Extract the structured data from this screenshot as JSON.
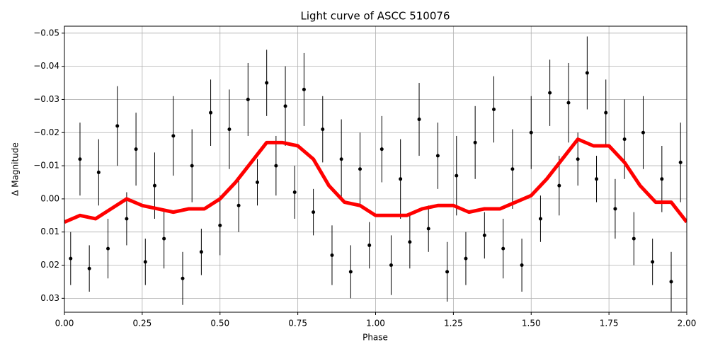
{
  "chart_data": {
    "type": "scatter",
    "title": "Light curve of ASCC 510076",
    "x_label": "Phase",
    "y_label": "Δ Magnitude",
    "grid": true,
    "color": "#000000",
    "xlim": [
      0,
      2
    ],
    "ylim": [
      0.0342,
      -0.0521
    ],
    "xticks": [
      {
        "value": 0,
        "label": "0.00"
      },
      {
        "value": 0.25,
        "label": "0.25"
      },
      {
        "value": 0.5,
        "label": "0.50"
      },
      {
        "value": 0.75,
        "label": "0.75"
      },
      {
        "value": 1,
        "label": "1.00"
      },
      {
        "value": 1.25,
        "label": "1.25"
      },
      {
        "value": 1.5,
        "label": "1.50"
      },
      {
        "value": 1.75,
        "label": "1.75"
      },
      {
        "value": 2,
        "label": "2.00"
      }
    ],
    "yticks": [
      {
        "value": -0.05,
        "label": "−0.05"
      },
      {
        "value": -0.04,
        "label": "−0.04"
      },
      {
        "value": -0.03,
        "label": "−0.03"
      },
      {
        "value": -0.02,
        "label": "−0.02"
      },
      {
        "value": -0.01,
        "label": "−0.01"
      },
      {
        "value": 0,
        "label": "0.00"
      },
      {
        "value": 0.01,
        "label": "0.01"
      },
      {
        "value": 0.02,
        "label": "0.02"
      },
      {
        "value": 0.03,
        "label": "0.03"
      }
    ],
    "x": [
      0.02,
      0.05,
      0.08,
      0.11,
      0.14,
      0.17,
      0.2,
      0.23,
      0.26,
      0.29,
      0.32,
      0.35,
      0.38,
      0.41,
      0.44,
      0.47,
      0.5,
      0.53,
      0.56,
      0.59,
      0.62,
      0.65,
      0.68,
      0.71,
      0.74,
      0.77,
      0.8,
      0.83,
      0.86,
      0.89,
      0.92,
      0.95,
      0.98,
      1.02,
      1.05,
      1.08,
      1.11,
      1.14,
      1.17,
      1.2,
      1.23,
      1.26,
      1.29,
      1.32,
      1.35,
      1.38,
      1.41,
      1.44,
      1.47,
      1.5,
      1.53,
      1.56,
      1.59,
      1.62,
      1.65,
      1.68,
      1.71,
      1.74,
      1.77,
      1.8,
      1.83,
      1.86,
      1.89,
      1.92,
      1.95,
      1.98
    ],
    "values": [
      0.018,
      -0.012,
      0.021,
      -0.008,
      0.015,
      -0.022,
      0.006,
      -0.015,
      0.019,
      -0.004,
      0.012,
      -0.019,
      0.024,
      -0.01,
      0.016,
      -0.026,
      0.008,
      -0.021,
      0.002,
      -0.03,
      -0.005,
      -0.035,
      -0.01,
      -0.028,
      -0.002,
      -0.033,
      0.004,
      -0.021,
      0.017,
      -0.012,
      0.022,
      -0.009,
      0.014,
      -0.015,
      0.02,
      -0.006,
      0.013,
      -0.024,
      0.009,
      -0.013,
      0.022,
      -0.007,
      0.018,
      -0.017,
      0.011,
      -0.027,
      0.015,
      -0.009,
      0.02,
      -0.02,
      0.006,
      -0.032,
      -0.004,
      -0.029,
      -0.012,
      -0.038,
      -0.006,
      -0.026,
      0.003,
      -0.018,
      0.012,
      -0.02,
      0.019,
      -0.006,
      0.025,
      -0.011
    ],
    "errors": [
      0.008,
      0.011,
      0.007,
      0.01,
      0.009,
      0.012,
      0.008,
      0.011,
      0.007,
      0.01,
      0.009,
      0.012,
      0.008,
      0.011,
      0.007,
      0.01,
      0.009,
      0.012,
      0.008,
      0.011,
      0.007,
      0.01,
      0.009,
      0.012,
      0.008,
      0.011,
      0.007,
      0.01,
      0.009,
      0.012,
      0.008,
      0.011,
      0.007,
      0.01,
      0.009,
      0.012,
      0.008,
      0.011,
      0.007,
      0.01,
      0.009,
      0.012,
      0.008,
      0.011,
      0.007,
      0.01,
      0.009,
      0.012,
      0.008,
      0.011,
      0.007,
      0.01,
      0.009,
      0.012,
      0.008,
      0.011,
      0.007,
      0.01,
      0.009,
      0.012,
      0.008,
      0.011,
      0.007,
      0.01,
      0.009,
      0.012
    ],
    "curve": {
      "color": "#ff0000",
      "x": [
        0,
        0.05,
        0.1,
        0.15,
        0.2,
        0.25,
        0.3,
        0.35,
        0.4,
        0.45,
        0.5,
        0.55,
        0.6,
        0.65,
        0.7,
        0.75,
        0.8,
        0.85,
        0.9,
        0.95,
        1,
        1.05,
        1.1,
        1.15,
        1.2,
        1.25,
        1.3,
        1.35,
        1.4,
        1.45,
        1.5,
        1.55,
        1.6,
        1.65,
        1.7,
        1.75,
        1.8,
        1.85,
        1.9,
        1.95,
        2
      ],
      "values": [
        0.007,
        0.005,
        0.006,
        0.003,
        0.0,
        0.002,
        0.003,
        0.004,
        0.003,
        0.003,
        0.0,
        -0.005,
        -0.011,
        -0.017,
        -0.017,
        -0.016,
        -0.012,
        -0.004,
        0.001,
        0.002,
        0.005,
        0.005,
        0.005,
        0.003,
        0.002,
        0.002,
        0.004,
        0.003,
        0.003,
        0.001,
        -0.001,
        -0.006,
        -0.012,
        -0.018,
        -0.016,
        -0.016,
        -0.011,
        -0.004,
        0.001,
        0.001,
        0.007
      ]
    }
  }
}
